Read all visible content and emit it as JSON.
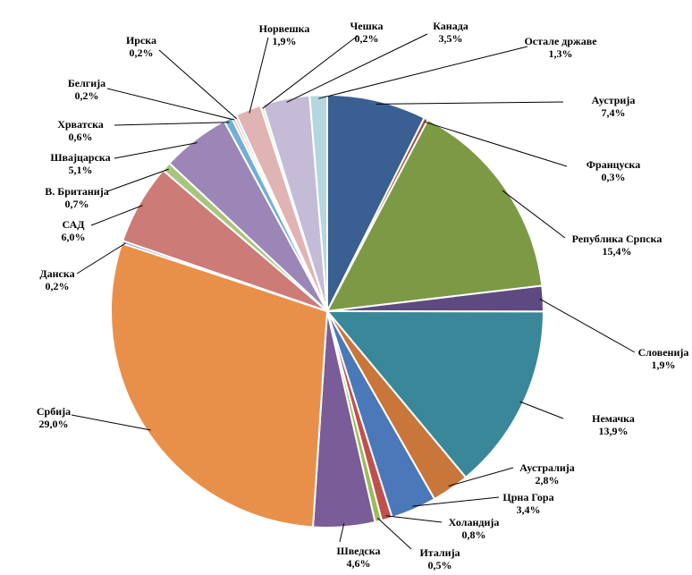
{
  "chart_data": {
    "type": "pie",
    "title": "",
    "slices": [
      {
        "name": "Аустрија",
        "value": 7.4,
        "label": "7,4%",
        "color": "#3A5F93"
      },
      {
        "name": "Француска",
        "value": 0.3,
        "label": "0,3%",
        "color": "#A04A47"
      },
      {
        "name": "Република Српска",
        "value": 15.4,
        "label": "15,4%",
        "color": "#7C9A44"
      },
      {
        "name": "Словенија",
        "value": 1.9,
        "label": "1,9%",
        "color": "#5E4A80"
      },
      {
        "name": "Немачка",
        "value": 13.9,
        "label": "13,9%",
        "color": "#3A8799"
      },
      {
        "name": "Аустралија",
        "value": 2.8,
        "label": "2,8%",
        "color": "#C9763A"
      },
      {
        "name": "Црна Гора",
        "value": 3.4,
        "label": "3,4%",
        "color": "#4A78B8"
      },
      {
        "name": "Холандија",
        "value": 0.8,
        "label": "0,8%",
        "color": "#C0504D"
      },
      {
        "name": "Италија",
        "value": 0.5,
        "label": "0,5%",
        "color": "#9BBB59"
      },
      {
        "name": "Шведска",
        "value": 4.6,
        "label": "4,6%",
        "color": "#7A5C99"
      },
      {
        "name": "Србија",
        "value": 29.0,
        "label": "29,0%",
        "color": "#E8904A"
      },
      {
        "name": "Данска",
        "value": 0.2,
        "label": "0,2%",
        "color": "#6E8DC2"
      },
      {
        "name": "САД",
        "value": 6.0,
        "label": "6,0%",
        "color": "#CC7B77"
      },
      {
        "name": "В. Британија",
        "value": 0.7,
        "label": "0,7%",
        "color": "#A9C47E"
      },
      {
        "name": "Швајцарска",
        "value": 5.1,
        "label": "5,1%",
        "color": "#9B86B7"
      },
      {
        "name": "Хрватска",
        "value": 0.6,
        "label": "0,6%",
        "color": "#6FB0D4"
      },
      {
        "name": "Белгија",
        "value": 0.2,
        "label": "0,2%",
        "color": "#F2A470"
      },
      {
        "name": "Ирска",
        "value": 0.2,
        "label": "0,2%",
        "color": "#A9BFDE"
      },
      {
        "name": "Норвешка",
        "value": 1.9,
        "label": "1,9%",
        "color": "#E0B4B2"
      },
      {
        "name": "Чешка",
        "value": 0.2,
        "label": "0,2%",
        "color": "#D1E0B4"
      },
      {
        "name": "Канада",
        "value": 3.5,
        "label": "3,5%",
        "color": "#C4BCD6"
      },
      {
        "name": "Остале државе",
        "value": 1.3,
        "label": "1,3%",
        "color": "#B5D6E0"
      }
    ],
    "legend": "none"
  }
}
